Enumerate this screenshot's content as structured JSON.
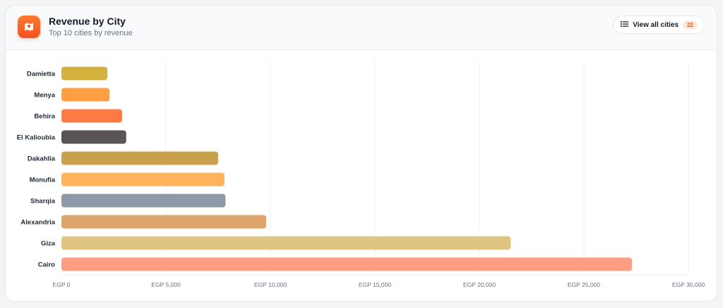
{
  "header": {
    "title": "Revenue by City",
    "subtitle": "Top 10 cities by revenue",
    "icon": "map-icon",
    "view_all_label": "View all cities",
    "view_all_count": "22",
    "accent_color": "#f4511e"
  },
  "chart_data": {
    "type": "bar",
    "orientation": "horizontal",
    "title": "",
    "xlabel": "",
    "ylabel": "",
    "categories": [
      "Damietta",
      "Menya",
      "Behira",
      "El Kalioubia",
      "Dakahlia",
      "Monufia",
      "Sharqia",
      "Alexandria",
      "Giza",
      "Cairo"
    ],
    "values": [
      2200,
      2300,
      2900,
      3100,
      7500,
      7800,
      7850,
      9800,
      21500,
      27300
    ],
    "colors": [
      "#d4b03d",
      "#ff9f43",
      "#ff7a45",
      "#5a5555",
      "#c9a14e",
      "#ffb35a",
      "#8e99a8",
      "#dda46c",
      "#dfc580",
      "#ff9d84"
    ],
    "xlim": [
      0,
      30000
    ],
    "xticks": [
      0,
      5000,
      10000,
      15000,
      20000,
      25000,
      30000
    ],
    "xtick_labels": [
      "EGP 0",
      "EGP 5,000",
      "EGP 10,000",
      "EGP 15,000",
      "EGP 20,000",
      "EGP 25,000",
      "EGP 30,000"
    ],
    "grid": true,
    "legend": "none"
  }
}
